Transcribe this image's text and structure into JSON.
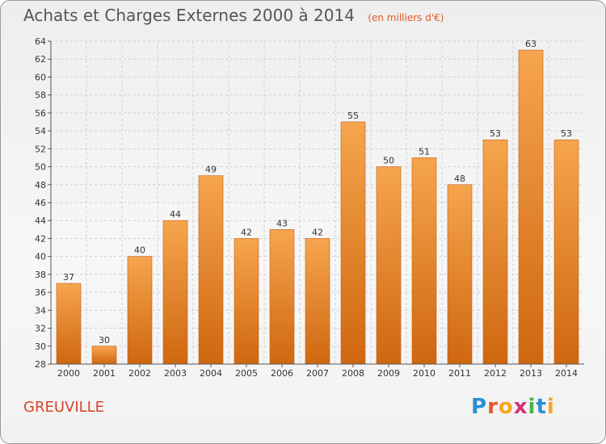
{
  "title": "Achats et Charges Externes 2000 à 2014",
  "subtitle": "(en milliers d'€)",
  "commune": "GREUVILLE",
  "logo": {
    "letters": [
      "P",
      "r",
      "o",
      "x",
      "i",
      "t",
      "i"
    ],
    "colors": [
      "#2a8fd6",
      "#e4572e",
      "#f5a623",
      "#d62f7a",
      "#4bb34b",
      "#2a8fd6",
      "#f5a623"
    ]
  },
  "colors": {
    "bar_top": "#f6a54e",
    "bar_bottom": "#cf6710",
    "bar_edge": "#c25e10",
    "grid": "#cfcfcf",
    "axis": "#555555"
  },
  "chart_data": {
    "type": "bar",
    "title": "Achats et Charges Externes 2000 à 2014",
    "ylabel": "en milliers d'€",
    "xlabel": "",
    "categories": [
      "2000",
      "2001",
      "2002",
      "2003",
      "2004",
      "2005",
      "2006",
      "2007",
      "2008",
      "2009",
      "2010",
      "2011",
      "2012",
      "2013",
      "2014"
    ],
    "values": [
      37,
      30,
      40,
      44,
      49,
      42,
      43,
      42,
      55,
      50,
      51,
      48,
      53,
      63,
      53
    ],
    "ylim": [
      28,
      64
    ],
    "yticks": [
      28,
      30,
      32,
      34,
      36,
      38,
      40,
      42,
      44,
      46,
      48,
      50,
      52,
      54,
      56,
      58,
      60,
      62,
      64
    ],
    "grid": true
  }
}
